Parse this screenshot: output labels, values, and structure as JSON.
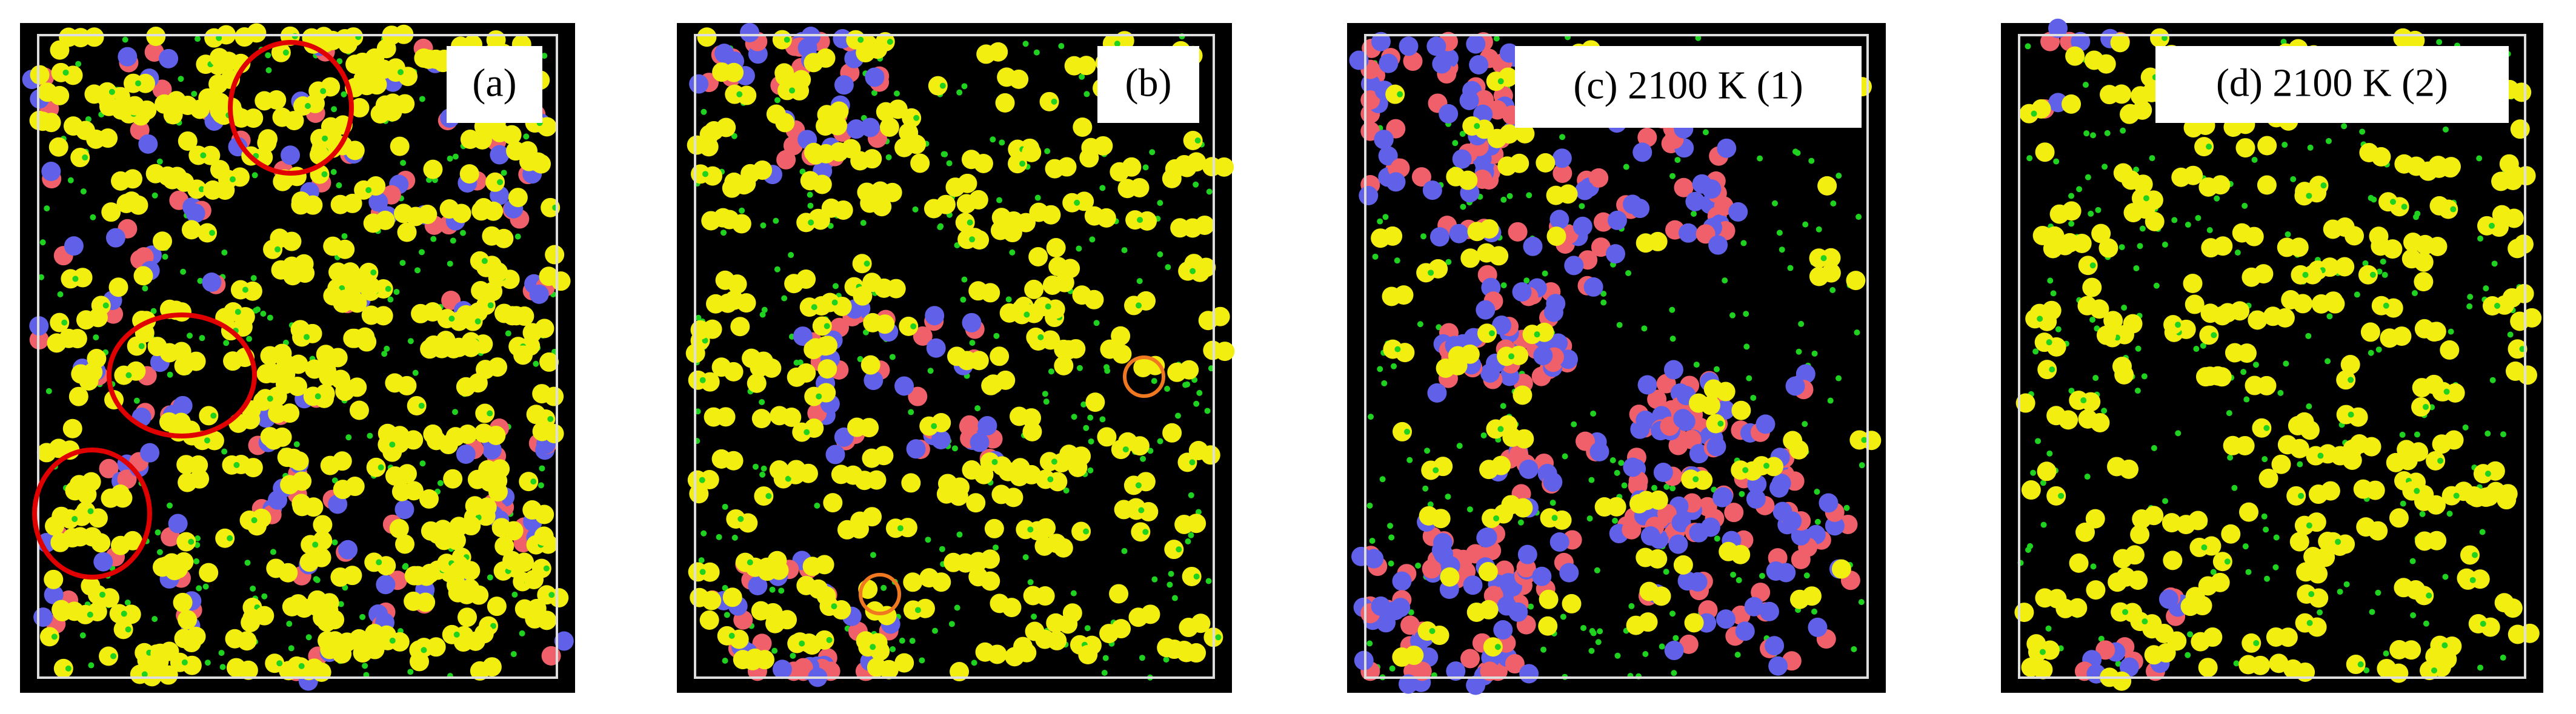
{
  "panels": [
    {
      "label": "(a)"
    },
    {
      "label": "(b)"
    },
    {
      "label": "(c) 2100 K (1)"
    },
    {
      "label": "(d) 2100 K (2)"
    }
  ]
}
